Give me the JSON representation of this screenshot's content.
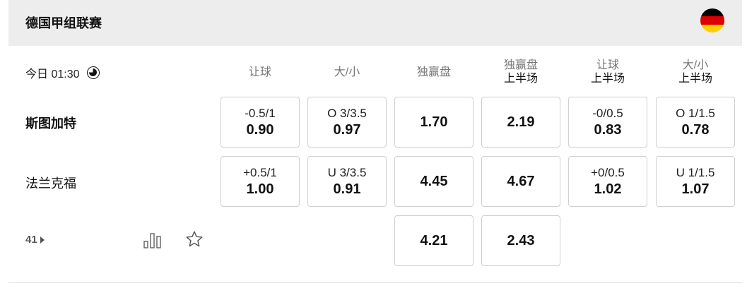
{
  "league": {
    "title": "德国甲组联赛",
    "flag": "germany-flag",
    "flag_colors": [
      "#000000",
      "#dd0000",
      "#ffce00"
    ]
  },
  "match": {
    "time": "今日 01:30",
    "home": "斯图加特",
    "away": "法兰克福",
    "more_count": "41"
  },
  "columns": [
    {
      "label": "让球",
      "sub": ""
    },
    {
      "label": "大/小",
      "sub": ""
    },
    {
      "label": "独赢盘",
      "sub": ""
    },
    {
      "label": "独赢盘",
      "sub": "上半场"
    },
    {
      "label": "让球",
      "sub": "上半场"
    },
    {
      "label": "大/小",
      "sub": "上半场"
    }
  ],
  "rows": [
    [
      {
        "line": "-0.5/1",
        "odd": "0.90"
      },
      {
        "line": "O 3/3.5",
        "odd": "0.97"
      },
      {
        "line": "",
        "odd": "1.70"
      },
      {
        "line": "",
        "odd": "2.19"
      },
      {
        "line": "-0/0.5",
        "odd": "0.83"
      },
      {
        "line": "O 1/1.5",
        "odd": "0.78"
      }
    ],
    [
      {
        "line": "+0.5/1",
        "odd": "1.00"
      },
      {
        "line": "U 3/3.5",
        "odd": "0.91"
      },
      {
        "line": "",
        "odd": "4.45"
      },
      {
        "line": "",
        "odd": "4.67"
      },
      {
        "line": "+0/0.5",
        "odd": "1.02"
      },
      {
        "line": "U 1/1.5",
        "odd": "1.07"
      }
    ],
    [
      null,
      null,
      {
        "line": "",
        "odd": "4.21"
      },
      {
        "line": "",
        "odd": "2.43"
      },
      null,
      null
    ]
  ]
}
